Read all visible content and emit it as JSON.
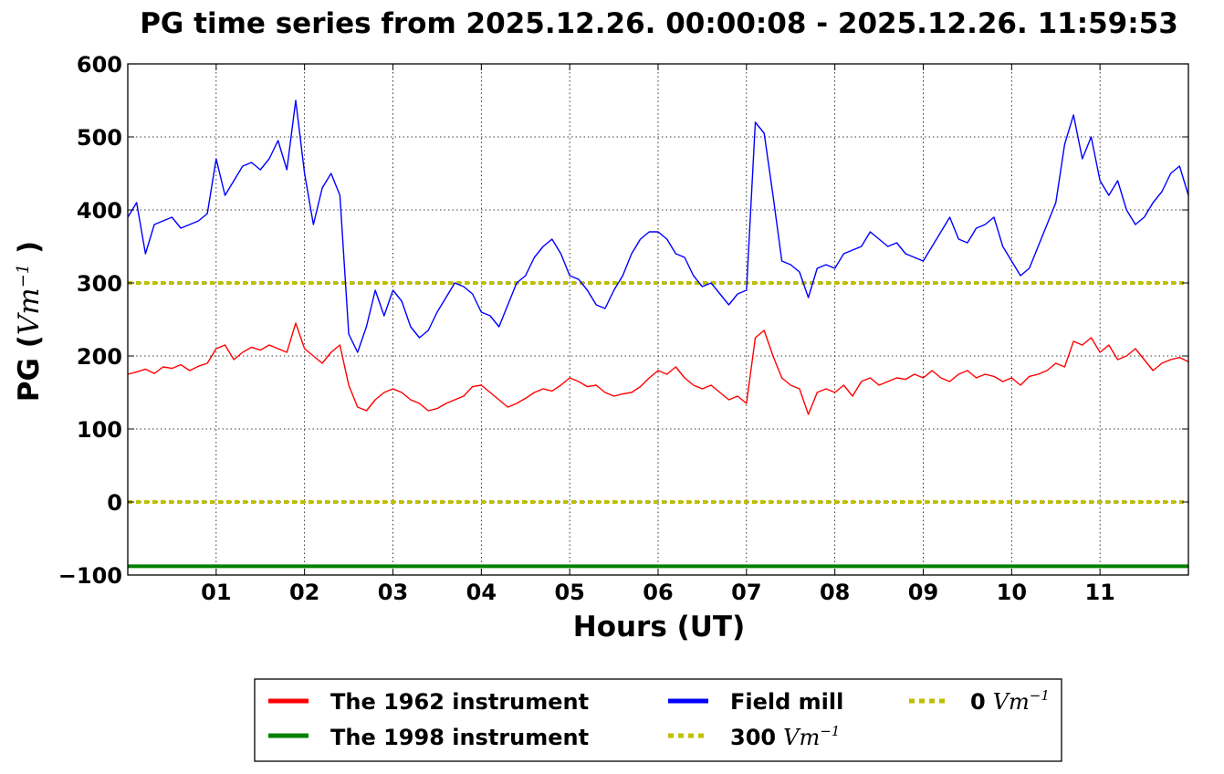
{
  "chart_data": {
    "type": "line",
    "title": "PG time series from 2025.12.26. 00:00:08 - 2025.12.26. 11:59:53",
    "xlabel": "Hours (UT)",
    "ylabel": "PG (Vm⁻¹)",
    "ylabel_prefix": "PG (",
    "ylabel_unit": "Vm",
    "ylabel_exp": "−1",
    "ylabel_suffix": " )",
    "xlim": [
      0,
      12
    ],
    "ylim": [
      -100,
      600
    ],
    "x_ticks": [
      1,
      2,
      3,
      4,
      5,
      6,
      7,
      8,
      9,
      10,
      11
    ],
    "x_tick_labels": [
      "01",
      "02",
      "03",
      "04",
      "05",
      "06",
      "07",
      "08",
      "09",
      "10",
      "11"
    ],
    "y_ticks": [
      -100,
      0,
      100,
      200,
      300,
      400,
      500,
      600
    ],
    "y_tick_labels": [
      "−100",
      "0",
      "100",
      "200",
      "300",
      "400",
      "500",
      "600"
    ],
    "grid": true,
    "legend_placement": "bottom-center-outside",
    "colors": {
      "instrument_1962": "#ff0000",
      "instrument_1998": "#008000",
      "field_mill": "#0000ff",
      "ref_line": "#bfbf00"
    },
    "series": [
      {
        "name": "The 1962 instrument",
        "color": "#ff0000",
        "x": [
          0,
          0.1,
          0.2,
          0.3,
          0.4,
          0.5,
          0.6,
          0.7,
          0.8,
          0.9,
          1.0,
          1.1,
          1.2,
          1.3,
          1.4,
          1.5,
          1.6,
          1.7,
          1.8,
          1.9,
          2.0,
          2.1,
          2.2,
          2.3,
          2.4,
          2.5,
          2.6,
          2.7,
          2.8,
          2.9,
          3.0,
          3.1,
          3.2,
          3.3,
          3.4,
          3.5,
          3.6,
          3.7,
          3.8,
          3.9,
          4.0,
          4.1,
          4.2,
          4.3,
          4.4,
          4.5,
          4.6,
          4.7,
          4.8,
          4.9,
          5.0,
          5.1,
          5.2,
          5.3,
          5.4,
          5.5,
          5.6,
          5.7,
          5.8,
          5.9,
          6.0,
          6.1,
          6.2,
          6.3,
          6.4,
          6.5,
          6.6,
          6.7,
          6.8,
          6.9,
          7.0,
          7.1,
          7.2,
          7.3,
          7.4,
          7.5,
          7.6,
          7.7,
          7.8,
          7.9,
          8.0,
          8.1,
          8.2,
          8.3,
          8.4,
          8.5,
          8.6,
          8.7,
          8.8,
          8.9,
          9.0,
          9.1,
          9.2,
          9.3,
          9.4,
          9.5,
          9.6,
          9.7,
          9.8,
          9.9,
          10.0,
          10.1,
          10.2,
          10.3,
          10.4,
          10.5,
          10.6,
          10.7,
          10.8,
          10.9,
          11.0,
          11.1,
          11.2,
          11.3,
          11.4,
          11.5,
          11.6,
          11.7,
          11.8,
          11.9,
          12.0
        ],
        "values": [
          175,
          178,
          182,
          176,
          185,
          183,
          188,
          180,
          186,
          190,
          210,
          215,
          195,
          205,
          212,
          208,
          215,
          210,
          205,
          245,
          210,
          200,
          190,
          205,
          215,
          160,
          130,
          125,
          140,
          150,
          155,
          150,
          140,
          135,
          125,
          128,
          135,
          140,
          145,
          158,
          160,
          150,
          140,
          130,
          135,
          142,
          150,
          155,
          152,
          160,
          170,
          165,
          158,
          160,
          150,
          145,
          148,
          150,
          158,
          170,
          180,
          175,
          185,
          170,
          160,
          155,
          160,
          150,
          140,
          145,
          135,
          225,
          235,
          200,
          170,
          160,
          155,
          120,
          150,
          155,
          150,
          160,
          145,
          165,
          170,
          160,
          165,
          170,
          168,
          175,
          170,
          180,
          170,
          165,
          175,
          180,
          170,
          175,
          172,
          165,
          170,
          160,
          172,
          175,
          180,
          190,
          185,
          220,
          215,
          225,
          205,
          215,
          195,
          200,
          210,
          195,
          180,
          190,
          195,
          198,
          192
        ]
      },
      {
        "name": "The 1998 instrument",
        "color": "#008000",
        "x": [
          0,
          12
        ],
        "values": [
          -88,
          -88
        ]
      },
      {
        "name": "Field mill",
        "color": "#0000ff",
        "x": [
          0,
          0.1,
          0.2,
          0.3,
          0.4,
          0.5,
          0.6,
          0.7,
          0.8,
          0.9,
          1.0,
          1.1,
          1.2,
          1.3,
          1.4,
          1.5,
          1.6,
          1.7,
          1.8,
          1.9,
          2.0,
          2.1,
          2.2,
          2.3,
          2.4,
          2.5,
          2.6,
          2.7,
          2.8,
          2.9,
          3.0,
          3.1,
          3.2,
          3.3,
          3.4,
          3.5,
          3.6,
          3.7,
          3.8,
          3.9,
          4.0,
          4.1,
          4.2,
          4.3,
          4.4,
          4.5,
          4.6,
          4.7,
          4.8,
          4.9,
          5.0,
          5.1,
          5.2,
          5.3,
          5.4,
          5.5,
          5.6,
          5.7,
          5.8,
          5.9,
          6.0,
          6.1,
          6.2,
          6.3,
          6.4,
          6.5,
          6.6,
          6.7,
          6.8,
          6.9,
          7.0,
          7.1,
          7.2,
          7.3,
          7.4,
          7.5,
          7.6,
          7.7,
          7.8,
          7.9,
          8.0,
          8.1,
          8.2,
          8.3,
          8.4,
          8.5,
          8.6,
          8.7,
          8.8,
          8.9,
          9.0,
          9.1,
          9.2,
          9.3,
          9.4,
          9.5,
          9.6,
          9.7,
          9.8,
          9.9,
          10.0,
          10.1,
          10.2,
          10.3,
          10.4,
          10.5,
          10.6,
          10.7,
          10.8,
          10.9,
          11.0,
          11.1,
          11.2,
          11.3,
          11.4,
          11.5,
          11.6,
          11.7,
          11.8,
          11.9,
          12.0
        ],
        "values": [
          390,
          410,
          340,
          380,
          385,
          390,
          375,
          380,
          385,
          395,
          470,
          420,
          440,
          460,
          465,
          455,
          470,
          495,
          455,
          550,
          450,
          380,
          430,
          450,
          420,
          230,
          205,
          240,
          290,
          255,
          290,
          275,
          240,
          225,
          235,
          260,
          280,
          300,
          295,
          285,
          260,
          255,
          240,
          270,
          300,
          310,
          335,
          350,
          360,
          340,
          310,
          305,
          290,
          270,
          265,
          290,
          310,
          340,
          360,
          370,
          370,
          360,
          340,
          335,
          310,
          295,
          300,
          285,
          270,
          285,
          290,
          520,
          505,
          420,
          330,
          325,
          315,
          280,
          320,
          325,
          320,
          340,
          345,
          350,
          370,
          360,
          350,
          355,
          340,
          335,
          330,
          350,
          370,
          390,
          360,
          355,
          375,
          380,
          390,
          350,
          330,
          310,
          320,
          350,
          380,
          410,
          490,
          530,
          470,
          500,
          440,
          420,
          440,
          400,
          380,
          390,
          410,
          425,
          450,
          460,
          420
        ]
      }
    ],
    "reference_lines": [
      {
        "name": "300 Vm⁻¹",
        "y": 300
      },
      {
        "name": "0 Vm⁻¹",
        "y": 0
      }
    ],
    "legend": {
      "entries": [
        {
          "label": "The 1962 instrument",
          "kind": "solid",
          "color": "#ff0000"
        },
        {
          "label": "The 1998 instrument",
          "kind": "solid",
          "color": "#008000"
        },
        {
          "label": "Field mill",
          "kind": "solid",
          "color": "#0000ff"
        },
        {
          "label": "300",
          "unit": "Vm",
          "exp": "−1",
          "kind": "dotted",
          "color": "#bfbf00"
        },
        {
          "label": "0",
          "unit": "Vm",
          "exp": "−1",
          "kind": "dotted",
          "color": "#bfbf00"
        }
      ]
    }
  }
}
